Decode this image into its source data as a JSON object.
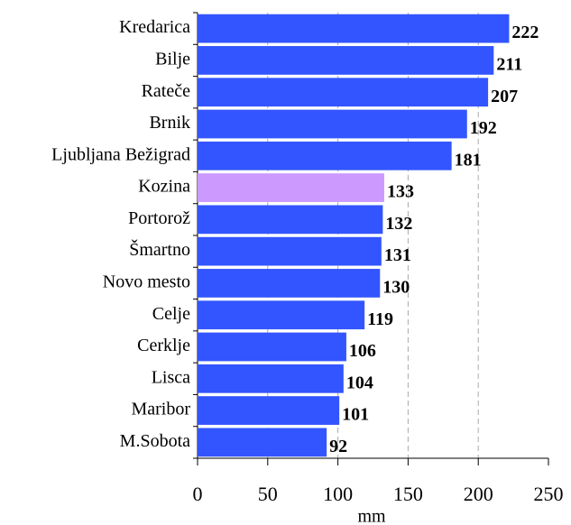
{
  "chart_data": {
    "type": "bar",
    "orientation": "horizontal",
    "categories": [
      "Kredarica",
      "Bilje",
      "Rateče",
      "Brnik",
      "Ljubljana Bežigrad",
      "Kozina",
      "Portorož",
      "Šmartno",
      "Novo mesto",
      "Celje",
      "Cerklje",
      "Lisca",
      "Maribor",
      "M.Sobota"
    ],
    "values": [
      222,
      211,
      207,
      192,
      181,
      133,
      132,
      131,
      130,
      119,
      106,
      104,
      101,
      92
    ],
    "colors": [
      "#3355ff",
      "#3355ff",
      "#3355ff",
      "#3355ff",
      "#3355ff",
      "#cc99ff",
      "#3355ff",
      "#3355ff",
      "#3355ff",
      "#3355ff",
      "#3355ff",
      "#3355ff",
      "#3355ff",
      "#3355ff"
    ],
    "xlim": [
      0,
      250
    ],
    "xticks": [
      0,
      50,
      100,
      150,
      200,
      250
    ],
    "xlabel": "mm",
    "grid": true
  }
}
